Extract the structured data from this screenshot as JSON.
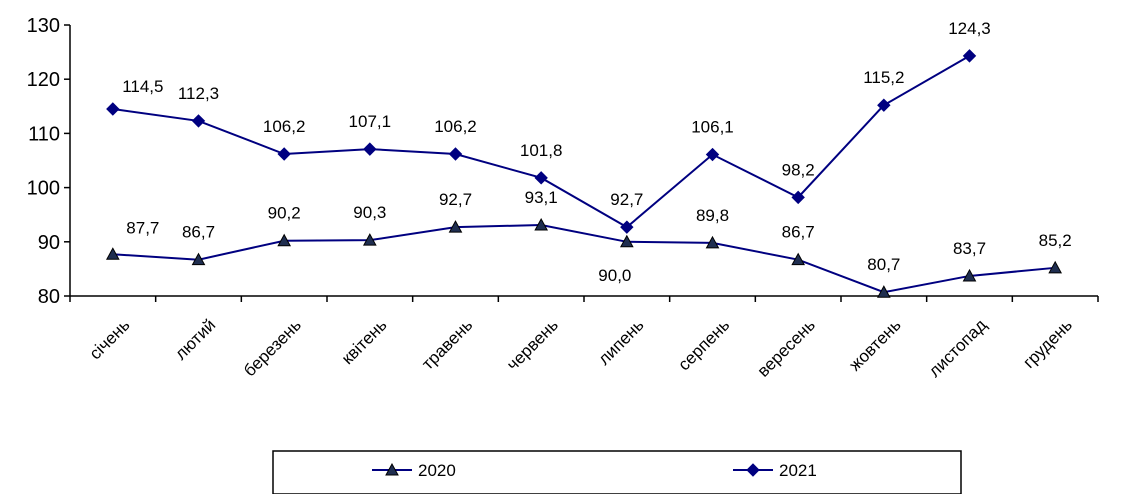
{
  "chart_data": {
    "type": "line",
    "categories": [
      "січень",
      "лютий",
      "березень",
      "квітень",
      "травень",
      "червень",
      "липень",
      "серпень",
      "вересень",
      "жовтень",
      "листопад",
      "грудень"
    ],
    "ylim": [
      80,
      130
    ],
    "yticks": [
      80,
      90,
      100,
      110,
      120,
      130
    ],
    "ytick_labels": [
      "80",
      "90",
      "100",
      "110",
      "120",
      "130"
    ],
    "grid": false,
    "legend_position": "bottom",
    "series": [
      {
        "name": "2020",
        "marker": "triangle",
        "color": "#000080",
        "values": [
          87.7,
          86.7,
          90.2,
          90.3,
          92.7,
          93.1,
          90.0,
          89.8,
          86.7,
          80.7,
          83.7,
          85.2
        ],
        "labels": [
          "87,7",
          "86,7",
          "90,2",
          "90,3",
          "92,7",
          "93,1",
          "90,0",
          "89,8",
          "86,7",
          "80,7",
          "83,7",
          "85,2"
        ]
      },
      {
        "name": "2021",
        "marker": "diamond",
        "color": "#000080",
        "values": [
          114.5,
          112.3,
          106.2,
          107.1,
          106.2,
          101.8,
          92.7,
          106.1,
          98.2,
          115.2,
          124.3,
          null
        ],
        "labels": [
          "114,5",
          "112,3",
          "106,2",
          "107,1",
          "106,2",
          "101,8",
          "92,7",
          "106,1",
          "98,2",
          "115,2",
          "124,3",
          null
        ]
      }
    ]
  }
}
